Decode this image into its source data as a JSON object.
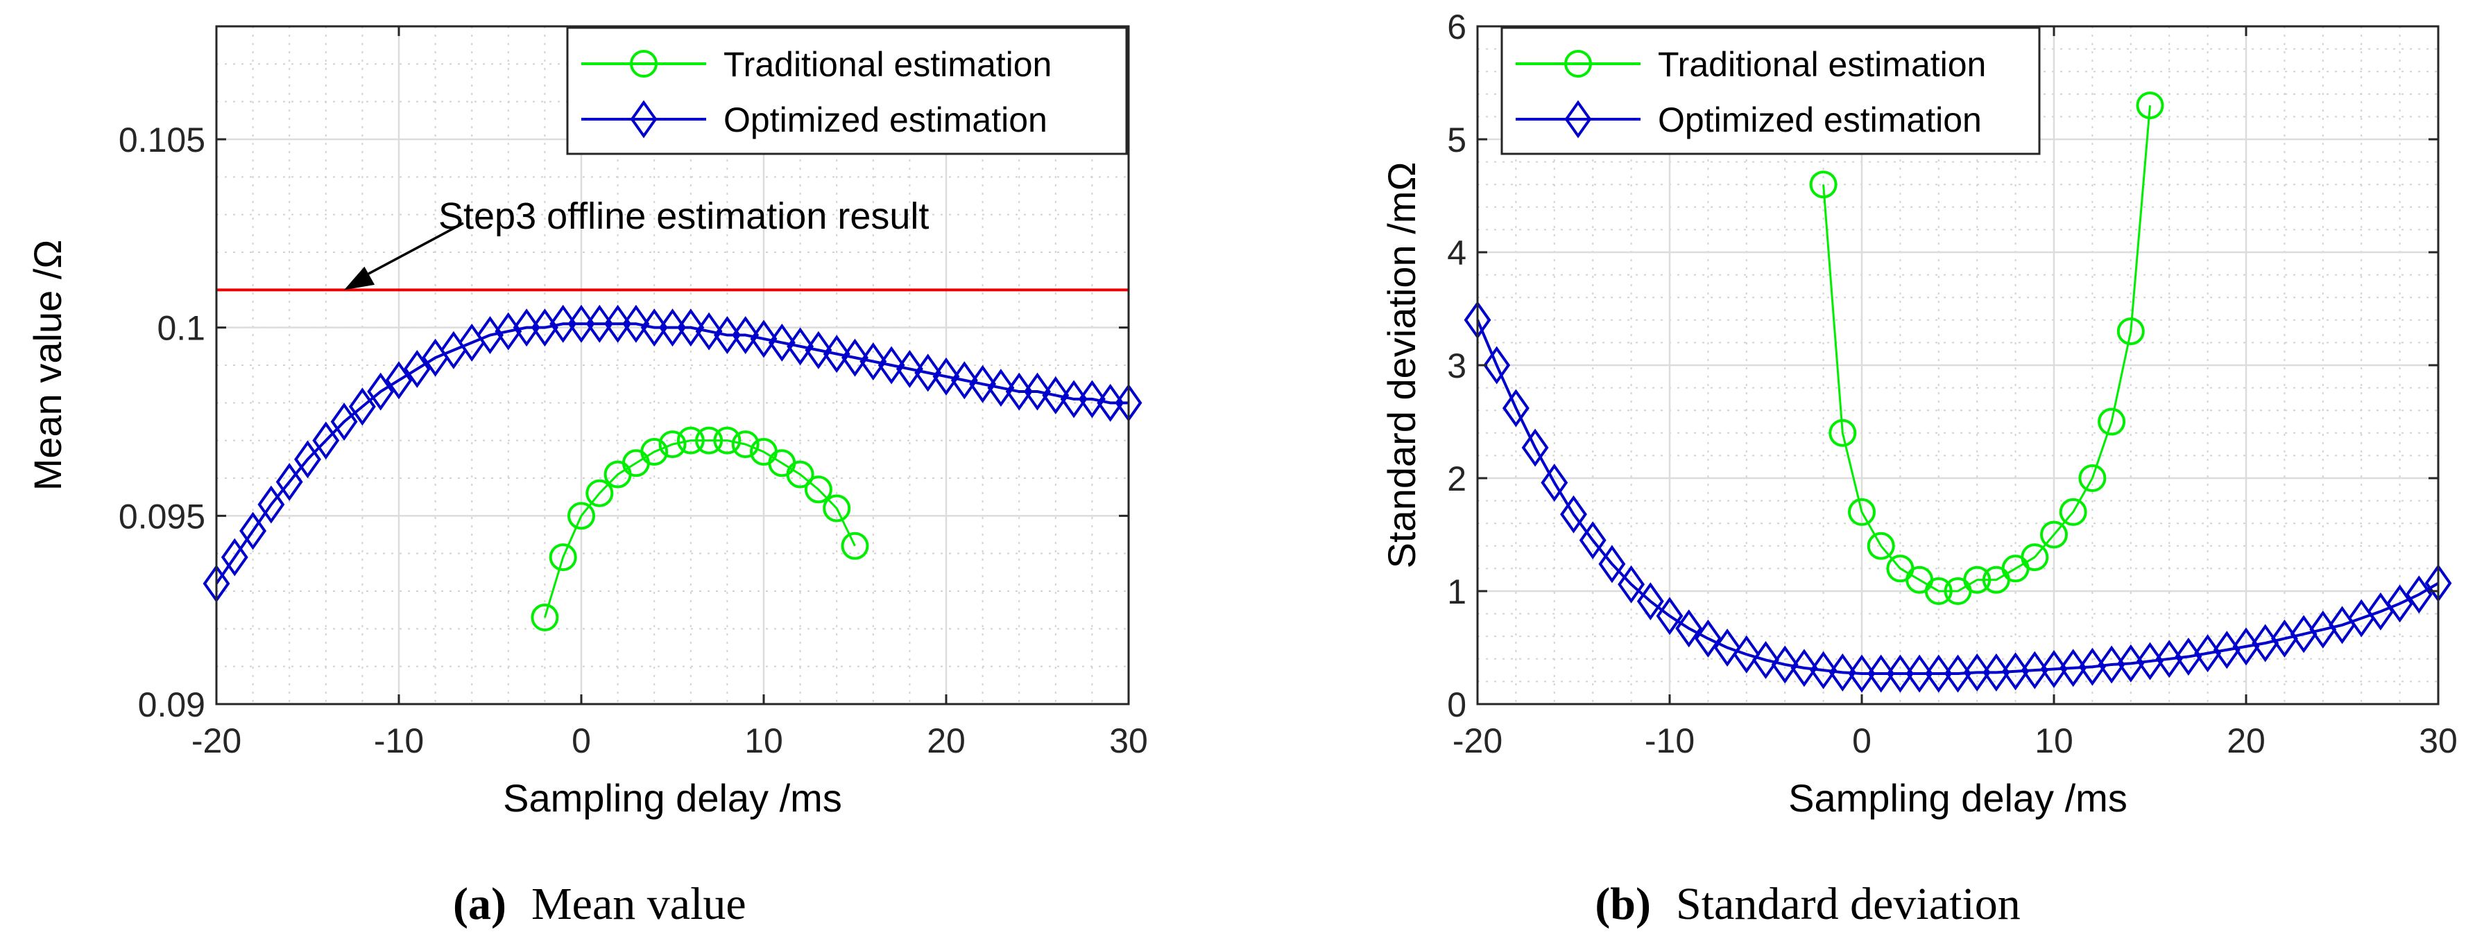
{
  "captions": [
    {
      "label": "(a)",
      "text": "Mean value"
    },
    {
      "label": "(b)",
      "text": "Standard deviation"
    }
  ],
  "colors": {
    "traditional": "#00ee00",
    "optimized": "#0000cc",
    "reference": "#ee0000",
    "axis": "#262626",
    "text": "#000000"
  },
  "chart_data": [
    {
      "type": "line",
      "title": "",
      "xlabel": "Sampling delay /ms",
      "ylabel": "Mean value /Ω",
      "xlim": [
        -20,
        30
      ],
      "ylim": [
        0.09,
        0.108
      ],
      "xticks": [
        -20,
        -10,
        0,
        10,
        20,
        30
      ],
      "xtick_labels": [
        "-20",
        "-10",
        "0",
        "10",
        "20",
        "30"
      ],
      "yticks": [
        0.09,
        0.095,
        0.1,
        0.105
      ],
      "ytick_labels": [
        "0.09",
        "0.095",
        "0.1",
        "0.105"
      ],
      "grid": true,
      "minor_grid": true,
      "legend": {
        "location": "top-right",
        "entries": [
          "Traditional estimation",
          "Optimized estimation"
        ]
      },
      "reference_line": {
        "y": 0.101,
        "color": "#ee0000"
      },
      "annotation": {
        "text": "Step3 offline estimation result",
        "points_to": {
          "x": -13,
          "y": 0.101
        }
      },
      "series": [
        {
          "name": "Traditional estimation",
          "marker": "circle",
          "color": "#00ee00",
          "x": [
            -2,
            -1,
            0,
            1,
            2,
            3,
            4,
            5,
            6,
            7,
            8,
            9,
            10,
            11,
            12,
            13,
            14,
            15
          ],
          "y": [
            0.0923,
            0.0939,
            0.095,
            0.0956,
            0.0961,
            0.0964,
            0.0967,
            0.0969,
            0.097,
            0.097,
            0.097,
            0.0969,
            0.0967,
            0.0964,
            0.0961,
            0.0957,
            0.0952,
            0.0942
          ]
        },
        {
          "name": "Optimized estimation",
          "marker": "diamond",
          "color": "#0000cc",
          "x": [
            -20,
            -19,
            -18,
            -17,
            -16,
            -15,
            -14,
            -13,
            -12,
            -11,
            -10,
            -9,
            -8,
            -7,
            -6,
            -5,
            -4,
            -3,
            -2,
            -1,
            0,
            1,
            2,
            3,
            4,
            5,
            6,
            7,
            8,
            9,
            10,
            11,
            12,
            13,
            14,
            15,
            16,
            17,
            18,
            19,
            20,
            21,
            22,
            23,
            24,
            25,
            26,
            27,
            28,
            29,
            30
          ],
          "y": [
            0.0932,
            0.0939,
            0.0946,
            0.0953,
            0.0959,
            0.0965,
            0.097,
            0.0975,
            0.0979,
            0.0983,
            0.0986,
            0.0989,
            0.0992,
            0.0994,
            0.0996,
            0.0998,
            0.0999,
            0.1,
            0.1,
            0.1001,
            0.1001,
            0.1001,
            0.1001,
            0.1001,
            0.1,
            0.1,
            0.1,
            0.0999,
            0.0998,
            0.0998,
            0.0997,
            0.0996,
            0.0995,
            0.0994,
            0.0993,
            0.0992,
            0.0991,
            0.099,
            0.0989,
            0.0988,
            0.0987,
            0.0986,
            0.0985,
            0.0984,
            0.0983,
            0.0983,
            0.0982,
            0.0981,
            0.0981,
            0.098,
            0.098
          ]
        }
      ]
    },
    {
      "type": "line",
      "title": "",
      "xlabel": "Sampling delay /ms",
      "ylabel": "Standard deviation /mΩ",
      "xlim": [
        -20,
        30
      ],
      "ylim": [
        0,
        6
      ],
      "xticks": [
        -20,
        -10,
        0,
        10,
        20,
        30
      ],
      "xtick_labels": [
        "-20",
        "-10",
        "0",
        "10",
        "20",
        "30"
      ],
      "yticks": [
        0,
        1,
        2,
        3,
        4,
        5,
        6
      ],
      "ytick_labels": [
        "0",
        "1",
        "2",
        "3",
        "4",
        "5",
        "6"
      ],
      "grid": true,
      "minor_grid": true,
      "legend": {
        "location": "top-right",
        "entries": [
          "Traditional estimation",
          "Optimized estimation"
        ]
      },
      "series": [
        {
          "name": "Traditional estimation",
          "marker": "circle",
          "color": "#00ee00",
          "x": [
            -2,
            -1,
            0,
            1,
            2,
            3,
            4,
            5,
            6,
            7,
            8,
            9,
            10,
            11,
            12,
            13,
            14,
            15
          ],
          "y": [
            4.6,
            2.4,
            1.7,
            1.4,
            1.2,
            1.1,
            1.0,
            1.0,
            1.1,
            1.1,
            1.2,
            1.3,
            1.5,
            1.7,
            2.0,
            2.5,
            3.3,
            5.3
          ]
        },
        {
          "name": "Optimized estimation",
          "marker": "diamond",
          "color": "#0000cc",
          "x": [
            -20,
            -19,
            -18,
            -17,
            -16,
            -15,
            -14,
            -13,
            -12,
            -11,
            -10,
            -9,
            -8,
            -7,
            -6,
            -5,
            -4,
            -3,
            -2,
            -1,
            0,
            1,
            2,
            3,
            4,
            5,
            6,
            7,
            8,
            9,
            10,
            11,
            12,
            13,
            14,
            15,
            16,
            17,
            18,
            19,
            20,
            21,
            22,
            23,
            24,
            25,
            26,
            27,
            28,
            29,
            30
          ],
          "y": [
            3.4,
            3.0,
            2.62,
            2.27,
            1.96,
            1.68,
            1.45,
            1.24,
            1.06,
            0.91,
            0.78,
            0.67,
            0.58,
            0.5,
            0.44,
            0.39,
            0.35,
            0.32,
            0.3,
            0.28,
            0.27,
            0.27,
            0.27,
            0.27,
            0.27,
            0.27,
            0.28,
            0.28,
            0.29,
            0.3,
            0.31,
            0.32,
            0.33,
            0.35,
            0.36,
            0.38,
            0.4,
            0.42,
            0.45,
            0.48,
            0.51,
            0.54,
            0.58,
            0.62,
            0.66,
            0.7,
            0.76,
            0.82,
            0.89,
            0.97,
            1.07
          ]
        }
      ]
    }
  ]
}
